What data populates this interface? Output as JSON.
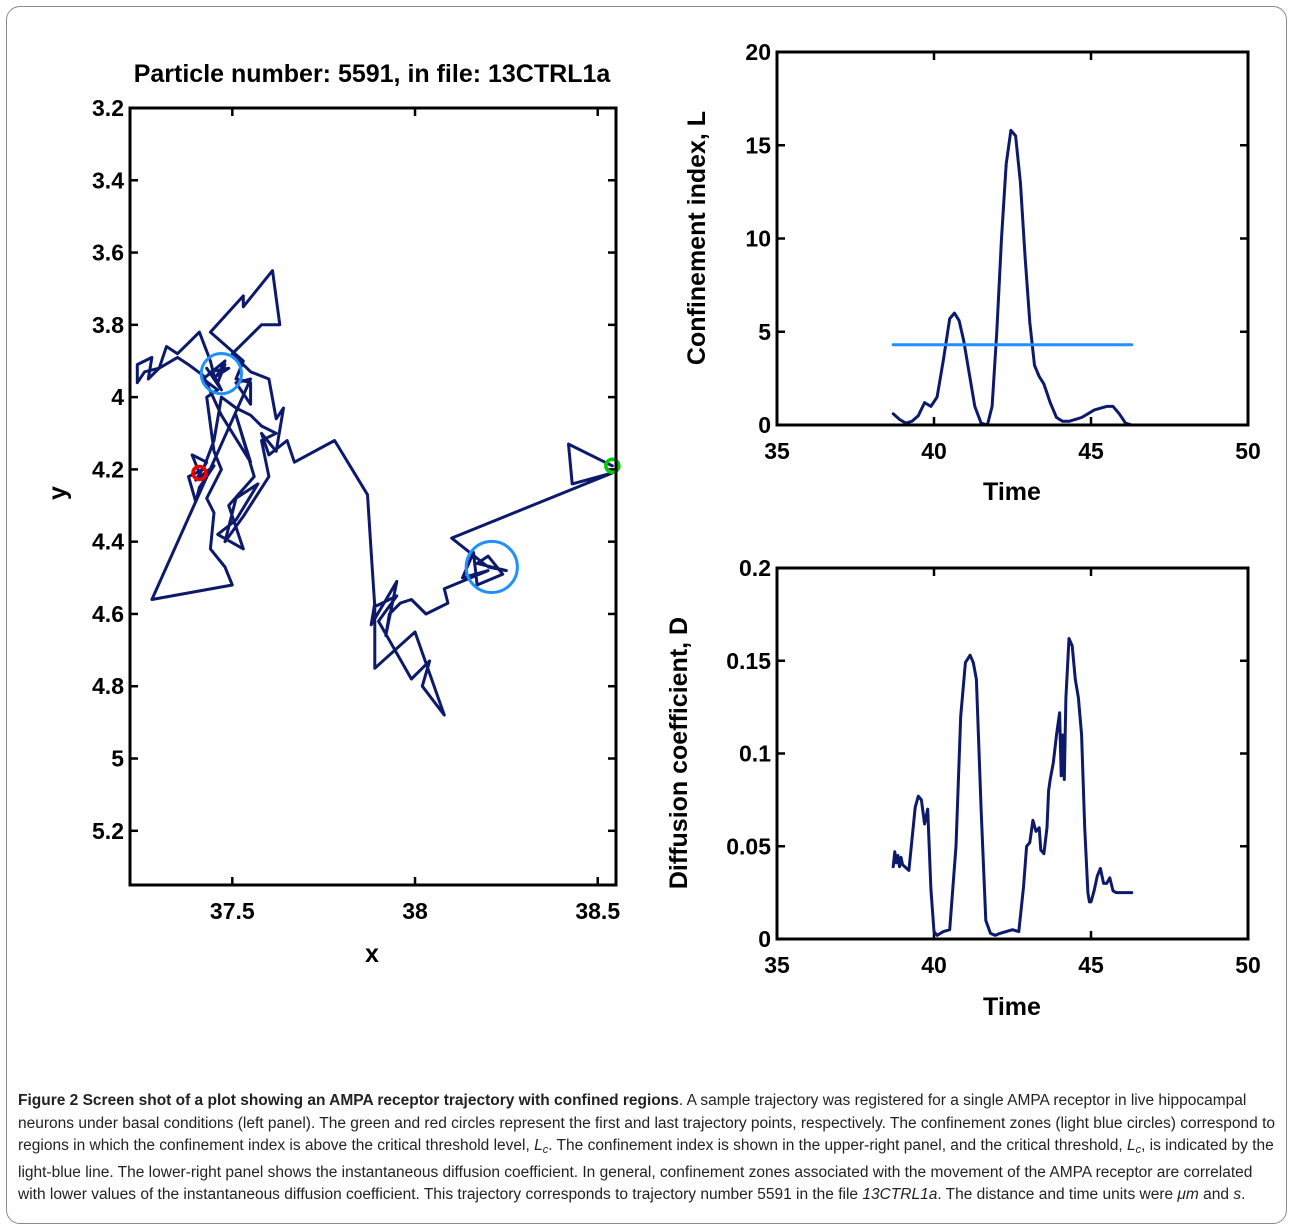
{
  "chart_data": [
    {
      "type": "line",
      "title": "Particle number: 5591, in file: 13CTRL1a",
      "xlabel": "x",
      "ylabel": "y",
      "xlim": [
        37.22,
        38.55
      ],
      "ylim": [
        3.2,
        5.35
      ],
      "y_reversed": true,
      "grid": false,
      "xticks": [
        37.5,
        38,
        38.5
      ],
      "xtick_labels": [
        "37.5",
        "38",
        "38.5"
      ],
      "yticks": [
        3.2,
        3.4,
        3.6,
        3.8,
        4.0,
        4.2,
        4.4,
        4.6,
        4.8,
        5.0,
        5.2
      ],
      "ytick_labels": [
        "3.2",
        "3.4",
        "3.6",
        "3.8",
        "4",
        "4.2",
        "4.4",
        "4.6",
        "4.8",
        "5",
        "5.2"
      ],
      "series": [
        {
          "role": "trajectory",
          "color": "#0d1a6b",
          "x": [
            38.54,
            38.42,
            38.43,
            38.54,
            38.1,
            38.2,
            38.25,
            38.17,
            38.2,
            38.24,
            38.17,
            38.16,
            38.13,
            38.2,
            38.08,
            38.09,
            38.03,
            37.99,
            37.96,
            37.93,
            37.92,
            37.95,
            37.88,
            37.89,
            37.89,
            38.0,
            38.08,
            38.02,
            38.04,
            37.99,
            37.9,
            37.95,
            37.89,
            37.88,
            37.87,
            37.78,
            37.67,
            37.65,
            37.6,
            37.58,
            37.62,
            37.64,
            37.62,
            37.6,
            37.55,
            37.5,
            37.58,
            37.63,
            37.61,
            37.53,
            37.53,
            37.44,
            37.53,
            37.51,
            37.55,
            37.55,
            37.51,
            37.55,
            37.28,
            37.5,
            37.48,
            37.44,
            37.45,
            37.43,
            37.47,
            37.45,
            37.43,
            37.46,
            37.42,
            37.48,
            37.46,
            37.49,
            37.44,
            37.46,
            37.48,
            37.45,
            37.43,
            37.47,
            37.45,
            37.44,
            37.41,
            37.38,
            37.35,
            37.32,
            37.3,
            37.27,
            37.28,
            37.24,
            37.24,
            37.26,
            37.3,
            37.35,
            37.38,
            37.42,
            37.47,
            37.55,
            37.51,
            37.56,
            37.49,
            37.53,
            37.46,
            37.51,
            37.57,
            37.51,
            37.48,
            37.53,
            37.6,
            37.58,
            37.62,
            37.58,
            37.55,
            37.51,
            37.47,
            37.45,
            37.42,
            37.38,
            37.4,
            37.41,
            37.45,
            37.4,
            37.43,
            37.39,
            37.41
          ],
          "y": [
            4.19,
            4.13,
            4.24,
            4.21,
            4.39,
            4.47,
            4.48,
            4.46,
            4.44,
            4.49,
            4.52,
            4.43,
            4.5,
            4.48,
            4.53,
            4.57,
            4.6,
            4.56,
            4.57,
            4.6,
            4.66,
            4.51,
            4.63,
            4.57,
            4.75,
            4.65,
            4.88,
            4.8,
            4.73,
            4.78,
            4.62,
            4.55,
            4.58,
            4.43,
            4.27,
            4.12,
            4.18,
            4.12,
            4.16,
            4.1,
            4.15,
            4.03,
            4.06,
            3.95,
            3.93,
            3.88,
            3.8,
            3.8,
            3.65,
            3.75,
            3.72,
            3.82,
            3.9,
            3.95,
            3.96,
            4.02,
            3.96,
            3.95,
            4.56,
            4.52,
            4.47,
            4.42,
            4.32,
            4.28,
            4.2,
            4.15,
            4.0,
            3.98,
            3.95,
            3.9,
            3.94,
            3.92,
            3.93,
            3.96,
            3.91,
            3.95,
            3.92,
            3.98,
            3.94,
            3.9,
            3.82,
            3.85,
            3.88,
            3.86,
            3.92,
            3.95,
            3.89,
            3.91,
            3.96,
            3.93,
            3.92,
            3.89,
            3.91,
            3.94,
            4.05,
            4.18,
            4.05,
            4.22,
            4.3,
            4.42,
            4.38,
            4.34,
            4.24,
            4.28,
            4.4,
            4.33,
            4.22,
            4.12,
            4.1,
            4.08,
            4.05,
            4.03,
            4.0,
            4.12,
            4.2,
            4.22,
            4.29,
            4.25,
            4.19,
            4.23,
            4.18,
            4.16,
            4.21
          ]
        }
      ],
      "markers": [
        {
          "role": "first-point",
          "x": 38.54,
          "y": 4.19,
          "color": "#00cc00"
        },
        {
          "role": "last-point",
          "x": 37.41,
          "y": 4.21,
          "color": "#ee0000"
        }
      ],
      "confinement_circles": [
        {
          "x": 37.47,
          "y": 3.935,
          "r_data_x": 0.055,
          "color": "#1e90ff"
        },
        {
          "x": 38.21,
          "y": 4.47,
          "r_data_x": 0.07,
          "color": "#1e90ff"
        }
      ]
    },
    {
      "type": "line",
      "title": "",
      "xlabel": "Time",
      "ylabel": "Confinement index, L",
      "xlim": [
        35,
        50
      ],
      "ylim": [
        0,
        20
      ],
      "grid": false,
      "xticks": [
        35,
        40,
        45,
        50
      ],
      "xtick_labels": [
        "35",
        "40",
        "45",
        "50"
      ],
      "yticks": [
        0,
        5,
        10,
        15,
        20
      ],
      "ytick_labels": [
        "0",
        "5",
        "10",
        "15",
        "20"
      ],
      "series": [
        {
          "role": "confinement-index",
          "color": "#0d1a6b",
          "x": [
            38.7,
            38.9,
            39.1,
            39.3,
            39.5,
            39.7,
            39.9,
            40.1,
            40.3,
            40.5,
            40.65,
            40.8,
            40.95,
            41.1,
            41.3,
            41.5,
            41.7,
            41.85,
            42.0,
            42.15,
            42.3,
            42.45,
            42.6,
            42.75,
            42.9,
            43.05,
            43.2,
            43.35,
            43.5,
            43.7,
            43.9,
            44.1,
            44.3,
            44.5,
            44.7,
            44.9,
            45.1,
            45.3,
            45.5,
            45.7,
            45.9,
            46.1,
            46.3
          ],
          "y": [
            0.6,
            0.3,
            0.1,
            0.2,
            0.5,
            1.2,
            1.0,
            1.5,
            3.5,
            5.7,
            6.0,
            5.6,
            4.5,
            3.0,
            1.0,
            0.1,
            0.0,
            1.0,
            5.0,
            10.0,
            14.0,
            15.8,
            15.5,
            13.0,
            9.0,
            5.5,
            3.2,
            2.6,
            2.2,
            1.2,
            0.4,
            0.2,
            0.2,
            0.3,
            0.4,
            0.6,
            0.8,
            0.9,
            1.0,
            1.0,
            0.6,
            0.1,
            0.0
          ]
        },
        {
          "role": "critical-threshold",
          "color": "#1e90ff",
          "x": [
            38.7,
            46.3
          ],
          "y": [
            4.3,
            4.3
          ]
        }
      ]
    },
    {
      "type": "line",
      "title": "",
      "xlabel": "Time",
      "ylabel": "Diffusion coefficient, D",
      "xlim": [
        35,
        50
      ],
      "ylim": [
        0,
        0.2
      ],
      "grid": false,
      "xticks": [
        35,
        40,
        45,
        50
      ],
      "xtick_labels": [
        "35",
        "40",
        "45",
        "50"
      ],
      "yticks": [
        0,
        0.05,
        0.1,
        0.15,
        0.2
      ],
      "ytick_labels": [
        "0",
        "0.05",
        "0.1",
        "0.15",
        "0.2"
      ],
      "series": [
        {
          "role": "diffusion-coefficient",
          "color": "#0d1a6b",
          "x": [
            38.7,
            38.75,
            38.8,
            38.85,
            38.9,
            38.95,
            39.0,
            39.2,
            39.4,
            39.5,
            39.6,
            39.7,
            39.8,
            39.9,
            40.0,
            40.1,
            40.3,
            40.5,
            40.7,
            40.85,
            41.0,
            41.15,
            41.25,
            41.35,
            41.5,
            41.65,
            41.8,
            41.95,
            42.1,
            42.3,
            42.5,
            42.7,
            42.85,
            42.95,
            43.05,
            43.15,
            43.25,
            43.35,
            43.4,
            43.5,
            43.6,
            43.65,
            43.7,
            43.8,
            43.9,
            44.0,
            44.05,
            44.1,
            44.15,
            44.2,
            44.3,
            44.4,
            44.5,
            44.6,
            44.7,
            44.8,
            44.9,
            44.95,
            45.0,
            45.1,
            45.2,
            45.3,
            45.4,
            45.5,
            45.6,
            45.7,
            45.8,
            45.9,
            46.1,
            46.3
          ],
          "y": [
            0.039,
            0.047,
            0.041,
            0.045,
            0.039,
            0.044,
            0.04,
            0.037,
            0.071,
            0.077,
            0.075,
            0.062,
            0.07,
            0.027,
            0.004,
            0.002,
            0.004,
            0.005,
            0.05,
            0.12,
            0.149,
            0.153,
            0.149,
            0.14,
            0.07,
            0.01,
            0.003,
            0.002,
            0.003,
            0.004,
            0.005,
            0.004,
            0.028,
            0.05,
            0.052,
            0.064,
            0.058,
            0.06,
            0.048,
            0.046,
            0.06,
            0.08,
            0.086,
            0.095,
            0.11,
            0.122,
            0.088,
            0.11,
            0.086,
            0.13,
            0.162,
            0.158,
            0.14,
            0.13,
            0.11,
            0.06,
            0.025,
            0.02,
            0.02,
            0.026,
            0.034,
            0.038,
            0.03,
            0.03,
            0.033,
            0.026,
            0.025,
            0.025,
            0.025,
            0.025
          ]
        }
      ]
    }
  ],
  "caption": {
    "lead": "Figure 2 Screen shot of a plot showing an AMPA receptor trajectory with confined regions",
    "p1": ". A sample trajectory was registered for a single AMPA receptor in live hippocampal neurons under basal conditions (left panel). The green and red circles represent the first and last trajectory points, respectively. The confinement zones (light blue circles) correspond to regions in which the confinement index is above the critical threshold level, ",
    "lc1_main": "L",
    "lc1_sub": "c",
    "p2": ". The confinement index is shown in the upper-right panel, and the critical threshold, ",
    "lc2_main": "L",
    "lc2_sub": "c",
    "p3": ", is indicated by the light-blue line. The lower-right panel shows the instantaneous diffusion coefficient. In general, confinement zones associated with the movement of the AMPA receptor are correlated with lower values of the instantaneous diffusion coefficient. This trajectory corresponds to trajectory number 5591 in the file ",
    "file": "13CTRL1a",
    "p4": ". The distance and time units were ",
    "unit_d": "μm",
    "p5": " and ",
    "unit_t": "s",
    "p6": "."
  }
}
